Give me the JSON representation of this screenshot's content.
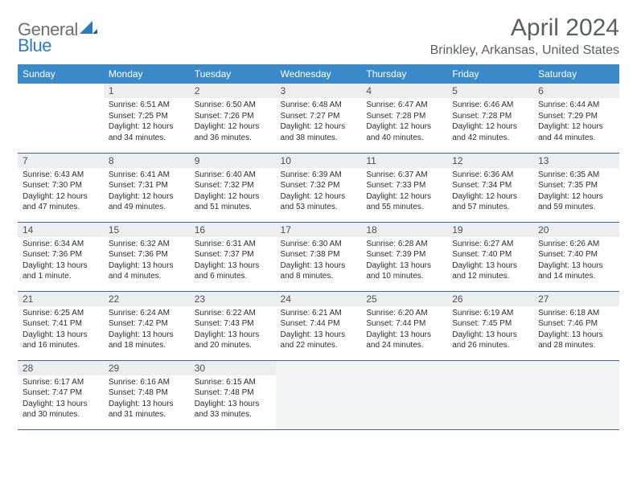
{
  "logo": {
    "general": "General",
    "blue": "Blue"
  },
  "title": "April 2024",
  "location": "Brinkley, Arkansas, United States",
  "colors": {
    "header_bg": "#3a8ac9",
    "header_text": "#ffffff",
    "daynum_bg": "#eceef0",
    "row_border": "#3a6a95",
    "text": "#2a2d31",
    "logo_gray": "#6b7075",
    "logo_blue": "#2d7ac0",
    "title_color": "#5a5f64"
  },
  "typography": {
    "title_fontsize": 30,
    "location_fontsize": 16,
    "header_fontsize": 12,
    "daynum_fontsize": 12,
    "body_fontsize": 10
  },
  "day_headers": [
    "Sunday",
    "Monday",
    "Tuesday",
    "Wednesday",
    "Thursday",
    "Friday",
    "Saturday"
  ],
  "weeks": [
    [
      {
        "day": "",
        "lines": []
      },
      {
        "day": "1",
        "lines": [
          "Sunrise: 6:51 AM",
          "Sunset: 7:25 PM",
          "Daylight: 12 hours and 34 minutes."
        ]
      },
      {
        "day": "2",
        "lines": [
          "Sunrise: 6:50 AM",
          "Sunset: 7:26 PM",
          "Daylight: 12 hours and 36 minutes."
        ]
      },
      {
        "day": "3",
        "lines": [
          "Sunrise: 6:48 AM",
          "Sunset: 7:27 PM",
          "Daylight: 12 hours and 38 minutes."
        ]
      },
      {
        "day": "4",
        "lines": [
          "Sunrise: 6:47 AM",
          "Sunset: 7:28 PM",
          "Daylight: 12 hours and 40 minutes."
        ]
      },
      {
        "day": "5",
        "lines": [
          "Sunrise: 6:46 AM",
          "Sunset: 7:28 PM",
          "Daylight: 12 hours and 42 minutes."
        ]
      },
      {
        "day": "6",
        "lines": [
          "Sunrise: 6:44 AM",
          "Sunset: 7:29 PM",
          "Daylight: 12 hours and 44 minutes."
        ]
      }
    ],
    [
      {
        "day": "7",
        "lines": [
          "Sunrise: 6:43 AM",
          "Sunset: 7:30 PM",
          "Daylight: 12 hours and 47 minutes."
        ]
      },
      {
        "day": "8",
        "lines": [
          "Sunrise: 6:41 AM",
          "Sunset: 7:31 PM",
          "Daylight: 12 hours and 49 minutes."
        ]
      },
      {
        "day": "9",
        "lines": [
          "Sunrise: 6:40 AM",
          "Sunset: 7:32 PM",
          "Daylight: 12 hours and 51 minutes."
        ]
      },
      {
        "day": "10",
        "lines": [
          "Sunrise: 6:39 AM",
          "Sunset: 7:32 PM",
          "Daylight: 12 hours and 53 minutes."
        ]
      },
      {
        "day": "11",
        "lines": [
          "Sunrise: 6:37 AM",
          "Sunset: 7:33 PM",
          "Daylight: 12 hours and 55 minutes."
        ]
      },
      {
        "day": "12",
        "lines": [
          "Sunrise: 6:36 AM",
          "Sunset: 7:34 PM",
          "Daylight: 12 hours and 57 minutes."
        ]
      },
      {
        "day": "13",
        "lines": [
          "Sunrise: 6:35 AM",
          "Sunset: 7:35 PM",
          "Daylight: 12 hours and 59 minutes."
        ]
      }
    ],
    [
      {
        "day": "14",
        "lines": [
          "Sunrise: 6:34 AM",
          "Sunset: 7:36 PM",
          "Daylight: 13 hours and 1 minute."
        ]
      },
      {
        "day": "15",
        "lines": [
          "Sunrise: 6:32 AM",
          "Sunset: 7:36 PM",
          "Daylight: 13 hours and 4 minutes."
        ]
      },
      {
        "day": "16",
        "lines": [
          "Sunrise: 6:31 AM",
          "Sunset: 7:37 PM",
          "Daylight: 13 hours and 6 minutes."
        ]
      },
      {
        "day": "17",
        "lines": [
          "Sunrise: 6:30 AM",
          "Sunset: 7:38 PM",
          "Daylight: 13 hours and 8 minutes."
        ]
      },
      {
        "day": "18",
        "lines": [
          "Sunrise: 6:28 AM",
          "Sunset: 7:39 PM",
          "Daylight: 13 hours and 10 minutes."
        ]
      },
      {
        "day": "19",
        "lines": [
          "Sunrise: 6:27 AM",
          "Sunset: 7:40 PM",
          "Daylight: 13 hours and 12 minutes."
        ]
      },
      {
        "day": "20",
        "lines": [
          "Sunrise: 6:26 AM",
          "Sunset: 7:40 PM",
          "Daylight: 13 hours and 14 minutes."
        ]
      }
    ],
    [
      {
        "day": "21",
        "lines": [
          "Sunrise: 6:25 AM",
          "Sunset: 7:41 PM",
          "Daylight: 13 hours and 16 minutes."
        ]
      },
      {
        "day": "22",
        "lines": [
          "Sunrise: 6:24 AM",
          "Sunset: 7:42 PM",
          "Daylight: 13 hours and 18 minutes."
        ]
      },
      {
        "day": "23",
        "lines": [
          "Sunrise: 6:22 AM",
          "Sunset: 7:43 PM",
          "Daylight: 13 hours and 20 minutes."
        ]
      },
      {
        "day": "24",
        "lines": [
          "Sunrise: 6:21 AM",
          "Sunset: 7:44 PM",
          "Daylight: 13 hours and 22 minutes."
        ]
      },
      {
        "day": "25",
        "lines": [
          "Sunrise: 6:20 AM",
          "Sunset: 7:44 PM",
          "Daylight: 13 hours and 24 minutes."
        ]
      },
      {
        "day": "26",
        "lines": [
          "Sunrise: 6:19 AM",
          "Sunset: 7:45 PM",
          "Daylight: 13 hours and 26 minutes."
        ]
      },
      {
        "day": "27",
        "lines": [
          "Sunrise: 6:18 AM",
          "Sunset: 7:46 PM",
          "Daylight: 13 hours and 28 minutes."
        ]
      }
    ],
    [
      {
        "day": "28",
        "lines": [
          "Sunrise: 6:17 AM",
          "Sunset: 7:47 PM",
          "Daylight: 13 hours and 30 minutes."
        ]
      },
      {
        "day": "29",
        "lines": [
          "Sunrise: 6:16 AM",
          "Sunset: 7:48 PM",
          "Daylight: 13 hours and 31 minutes."
        ]
      },
      {
        "day": "30",
        "lines": [
          "Sunrise: 6:15 AM",
          "Sunset: 7:48 PM",
          "Daylight: 13 hours and 33 minutes."
        ]
      },
      {
        "day": "",
        "lines": [],
        "trail": true
      },
      {
        "day": "",
        "lines": [],
        "trail": true
      },
      {
        "day": "",
        "lines": [],
        "trail": true
      },
      {
        "day": "",
        "lines": [],
        "trail": true
      }
    ]
  ]
}
